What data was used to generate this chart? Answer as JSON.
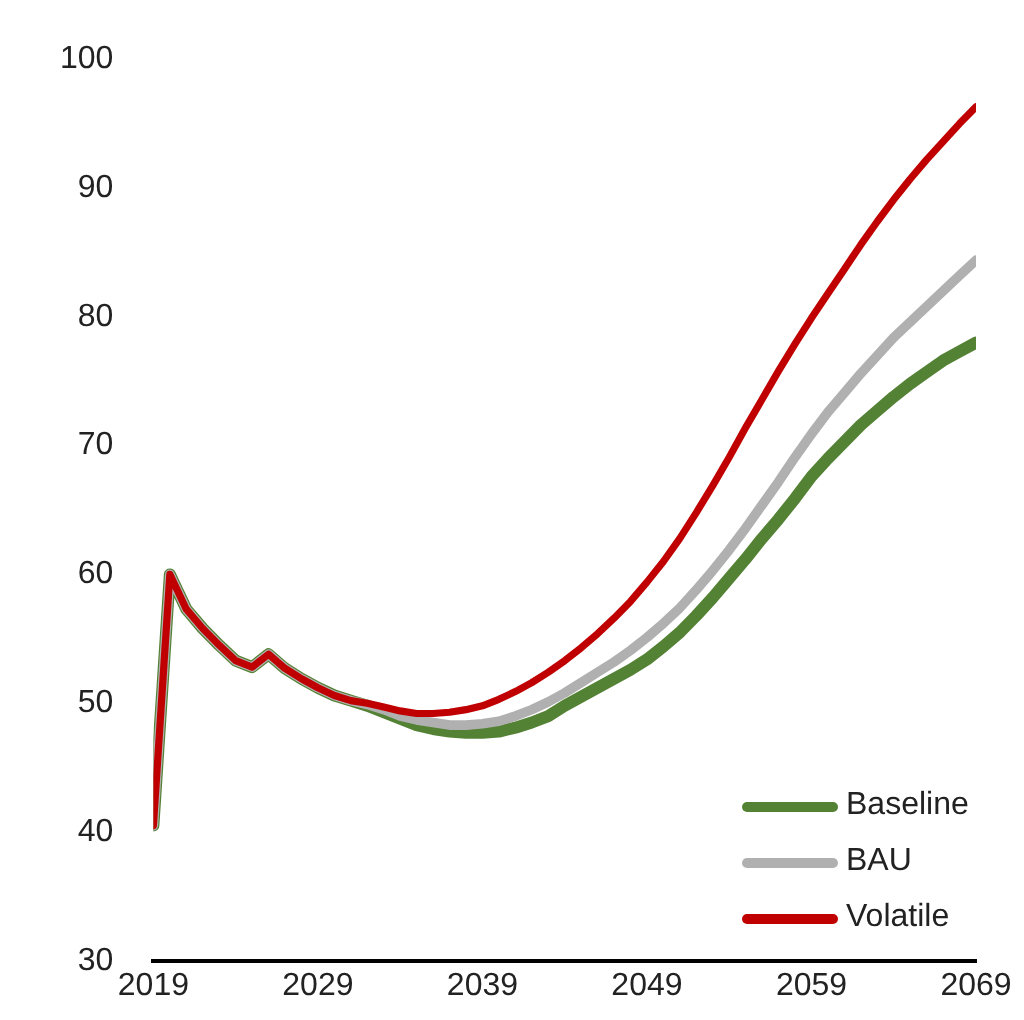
{
  "chart_data": {
    "type": "line",
    "x": [
      2019,
      2020,
      2021,
      2022,
      2023,
      2024,
      2025,
      2026,
      2027,
      2028,
      2029,
      2030,
      2031,
      2032,
      2033,
      2034,
      2035,
      2036,
      2037,
      2038,
      2039,
      2040,
      2041,
      2042,
      2043,
      2044,
      2045,
      2046,
      2047,
      2048,
      2049,
      2050,
      2051,
      2052,
      2053,
      2054,
      2055,
      2056,
      2057,
      2058,
      2059,
      2060,
      2061,
      2062,
      2063,
      2064,
      2065,
      2066,
      2067,
      2068,
      2069
    ],
    "series": [
      {
        "name": "Baseline",
        "color": "#548235",
        "values": [
          40.5,
          60,
          57.3,
          55.8,
          54.5,
          53.3,
          52.8,
          53.8,
          52.7,
          51.9,
          51.2,
          50.6,
          50.2,
          49.8,
          49.3,
          48.8,
          48.3,
          48.0,
          47.8,
          47.7,
          47.7,
          47.8,
          48.1,
          48.5,
          49.0,
          49.8,
          50.5,
          51.2,
          51.9,
          52.6,
          53.4,
          54.4,
          55.5,
          56.8,
          58.2,
          59.7,
          61.2,
          62.8,
          64.3,
          65.9,
          67.6,
          69.0,
          70.3,
          71.6,
          72.7,
          73.8,
          74.8,
          75.7,
          76.6,
          77.3,
          78.0
        ]
      },
      {
        "name": "BAU",
        "color": "#b0b0b0",
        "values": [
          40.5,
          60,
          57.3,
          55.8,
          54.5,
          53.3,
          52.8,
          53.8,
          52.7,
          51.9,
          51.2,
          50.6,
          50.2,
          49.9,
          49.5,
          49.0,
          48.7,
          48.5,
          48.3,
          48.3,
          48.4,
          48.6,
          49.0,
          49.5,
          50.1,
          50.8,
          51.6,
          52.4,
          53.2,
          54.1,
          55.1,
          56.2,
          57.4,
          58.8,
          60.3,
          61.9,
          63.6,
          65.4,
          67.2,
          69.1,
          70.9,
          72.6,
          74.1,
          75.6,
          77.0,
          78.4,
          79.6,
          80.8,
          82.0,
          83.2,
          84.4
        ]
      },
      {
        "name": "Volatile",
        "color": "#c00000",
        "values": [
          40.5,
          60,
          57.3,
          55.8,
          54.5,
          53.3,
          52.8,
          53.8,
          52.7,
          51.9,
          51.2,
          50.6,
          50.2,
          50.0,
          49.7,
          49.4,
          49.2,
          49.2,
          49.3,
          49.5,
          49.8,
          50.3,
          50.9,
          51.6,
          52.4,
          53.3,
          54.3,
          55.4,
          56.6,
          57.9,
          59.4,
          61.0,
          62.8,
          64.8,
          66.9,
          69.1,
          71.4,
          73.6,
          75.8,
          77.9,
          79.9,
          81.8,
          83.7,
          85.6,
          87.4,
          89.1,
          90.7,
          92.2,
          93.6,
          95.0,
          96.3
        ]
      }
    ],
    "xlim": [
      2019,
      2069
    ],
    "xticks": [
      2019,
      2029,
      2039,
      2049,
      2059,
      2069
    ],
    "ylim": [
      30,
      100
    ],
    "yticks": [
      30,
      40,
      50,
      60,
      70,
      80,
      90,
      100
    ],
    "grid": false,
    "legend": "bottom right",
    "marker": "none",
    "line_style": "solid"
  }
}
